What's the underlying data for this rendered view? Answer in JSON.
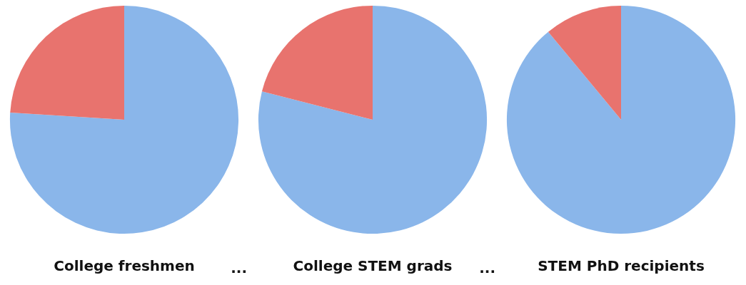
{
  "chart_data": [
    {
      "type": "pie",
      "title": "College freshmen",
      "categories": [
        null,
        null
      ],
      "values": [
        76,
        24
      ],
      "colors": [
        "#8ab6ea",
        "#e8736e"
      ],
      "annotations": [
        "..."
      ]
    },
    {
      "type": "pie",
      "title": "College STEM grads",
      "categories": [
        null,
        null
      ],
      "values": [
        79,
        21
      ],
      "colors": [
        "#8ab6ea",
        "#e8736e"
      ],
      "annotations": [
        "..."
      ]
    },
    {
      "type": "pie",
      "title": "STEM PhD recipients",
      "categories": [
        null,
        null
      ],
      "values": [
        89,
        11
      ],
      "colors": [
        "#8ab6ea",
        "#e8736e"
      ]
    }
  ]
}
